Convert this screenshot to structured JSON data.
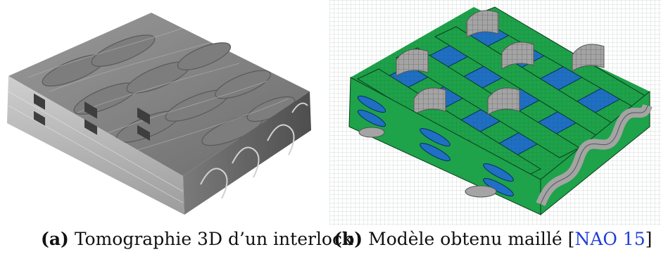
{
  "figures": [
    {
      "label": "(a)",
      "caption": "Tomographie 3D d’un interlock"
    },
    {
      "label": "(b)",
      "caption": "Modèle obtenu maillé",
      "citation_open": "[",
      "citation": "NAO 15",
      "citation_close": "]"
    }
  ],
  "colors": {
    "mesh_warp": "#1ea24a",
    "mesh_weft": "#1f6fc4",
    "mesh_binder": "#a4a4a4",
    "tomography_gray": "#8a8a8a",
    "citation_link": "#1f3fd6"
  }
}
